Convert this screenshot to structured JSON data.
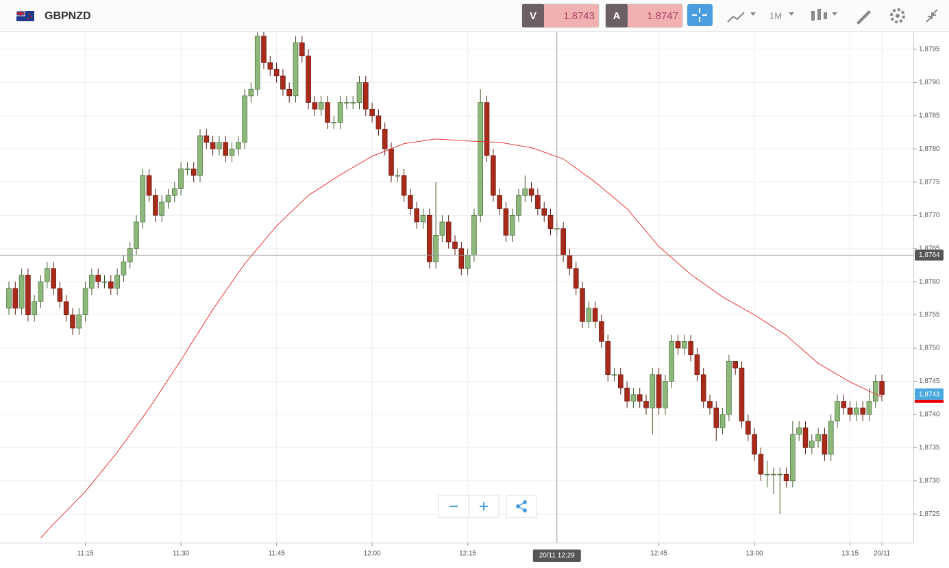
{
  "header": {
    "symbol": "GBPNZD",
    "bid_label": "V",
    "bid": "1.8743",
    "ask_label": "A",
    "ask": "1.8747",
    "timeframe": "1M"
  },
  "chart_data": {
    "type": "candlestick",
    "x": [
      "11:03",
      "11:04",
      "11:05",
      "11:06",
      "11:07",
      "11:08",
      "11:09",
      "11:10",
      "11:11",
      "11:12",
      "11:13",
      "11:14",
      "11:15",
      "11:16",
      "11:17",
      "11:18",
      "11:19",
      "11:20",
      "11:21",
      "11:22",
      "11:23",
      "11:24",
      "11:25",
      "11:26",
      "11:27",
      "11:28",
      "11:29",
      "11:30",
      "11:31",
      "11:32",
      "11:33",
      "11:34",
      "11:35",
      "11:36",
      "11:37",
      "11:38",
      "11:39",
      "11:40",
      "11:41",
      "11:42",
      "11:43",
      "11:44",
      "11:45",
      "11:46",
      "11:47",
      "11:48",
      "11:49",
      "11:50",
      "11:51",
      "11:52",
      "11:53",
      "11:54",
      "11:55",
      "11:56",
      "11:57",
      "11:58",
      "11:59",
      "12:00",
      "12:01",
      "12:02",
      "12:03",
      "12:04",
      "12:05",
      "12:06",
      "12:07",
      "12:08",
      "12:09",
      "12:10",
      "12:11",
      "12:12",
      "12:13",
      "12:14",
      "12:15",
      "12:16",
      "12:17",
      "12:18",
      "12:19",
      "12:20",
      "12:21",
      "12:22",
      "12:23",
      "12:24",
      "12:25",
      "12:26",
      "12:27",
      "12:28",
      "12:29",
      "12:30",
      "12:31",
      "12:32",
      "12:33",
      "12:34",
      "12:35",
      "12:36",
      "12:37",
      "12:38",
      "12:39",
      "12:40",
      "12:41",
      "12:42",
      "12:43",
      "12:44",
      "12:45",
      "12:46",
      "12:47",
      "12:48",
      "12:49",
      "12:50",
      "12:51",
      "12:52",
      "12:53",
      "12:54",
      "12:55",
      "12:56",
      "12:57",
      "12:58",
      "12:59",
      "13:00",
      "13:01",
      "13:02",
      "13:03",
      "13:04",
      "13:05",
      "13:06",
      "13:07",
      "13:08",
      "13:09",
      "13:10",
      "13:11",
      "13:12",
      "13:13",
      "13:14",
      "13:15",
      "13:16",
      "13:17",
      "13:18",
      "13:19",
      "13:20"
    ],
    "open": [
      1.8756,
      1.8759,
      1.8756,
      1.8761,
      1.8755,
      1.8757,
      1.876,
      1.8762,
      1.8759,
      1.8757,
      1.8755,
      1.8753,
      1.8755,
      1.8759,
      1.8761,
      1.876,
      1.876,
      1.8759,
      1.8761,
      1.8763,
      1.8765,
      1.8769,
      1.8776,
      1.8773,
      1.877,
      1.8772,
      1.8773,
      1.8774,
      1.8777,
      1.8777,
      1.8776,
      1.8782,
      1.8781,
      1.878,
      1.8781,
      1.8779,
      1.878,
      1.8781,
      1.8788,
      1.8789,
      1.8797,
      1.8793,
      1.8792,
      1.8791,
      1.8789,
      1.8788,
      1.8796,
      1.8794,
      1.8787,
      1.8786,
      1.8787,
      1.8784,
      1.8784,
      1.8787,
      1.8787,
      1.8787,
      1.879,
      1.8786,
      1.8785,
      1.8783,
      1.878,
      1.8776,
      1.8776,
      1.8773,
      1.8771,
      1.8769,
      1.877,
      1.8763,
      1.8767,
      1.8769,
      1.8766,
      1.8765,
      1.8762,
      1.8764,
      1.877,
      1.8787,
      1.8779,
      1.8773,
      1.8771,
      1.8767,
      1.877,
      1.8773,
      1.8774,
      1.8773,
      1.8771,
      1.877,
      1.8768,
      1.8768,
      1.8764,
      1.8762,
      1.8759,
      1.8754,
      1.8756,
      1.8754,
      1.8751,
      1.8746,
      1.8746,
      1.8744,
      1.8742,
      1.8743,
      1.8742,
      1.8741,
      1.8746,
      1.8741,
      1.8745,
      1.8751,
      1.875,
      1.8751,
      1.8749,
      1.8746,
      1.8742,
      1.8741,
      1.8738,
      1.874,
      1.8748,
      1.8747,
      1.8739,
      1.8737,
      1.8734,
      1.8731,
      1.8731,
      1.8731,
      1.8731,
      1.873,
      1.8737,
      1.8738,
      1.8735,
      1.8736,
      1.8737,
      1.8734,
      1.8739,
      1.8742,
      1.8741,
      1.874,
      1.8741,
      1.874,
      1.8742,
      1.8745
    ],
    "high": [
      1.876,
      1.876,
      1.8762,
      1.8762,
      1.8758,
      1.8761,
      1.8763,
      1.8763,
      1.876,
      1.8758,
      1.8756,
      1.8756,
      1.876,
      1.8762,
      1.8762,
      1.8761,
      1.8761,
      1.8762,
      1.8764,
      1.8766,
      1.877,
      1.8777,
      1.8777,
      1.8774,
      1.8773,
      1.8774,
      1.8775,
      1.8778,
      1.8778,
      1.8778,
      1.8783,
      1.8783,
      1.8782,
      1.8782,
      1.8782,
      1.8781,
      1.8782,
      1.8789,
      1.879,
      1.8798,
      1.8798,
      1.8794,
      1.8793,
      1.8792,
      1.879,
      1.8797,
      1.8797,
      1.8795,
      1.8788,
      1.8788,
      1.8788,
      1.8785,
      1.8788,
      1.8788,
      1.8788,
      1.8791,
      1.8791,
      1.8787,
      1.8786,
      1.8784,
      1.8781,
      1.8777,
      1.8777,
      1.8774,
      1.8772,
      1.8771,
      1.8771,
      1.8775,
      1.877,
      1.877,
      1.8767,
      1.8766,
      1.8765,
      1.8771,
      1.8789,
      1.8788,
      1.878,
      1.8774,
      1.8772,
      1.8771,
      1.8774,
      1.8776,
      1.8775,
      1.8774,
      1.8772,
      1.8771,
      1.8769,
      1.8769,
      1.8765,
      1.8763,
      1.876,
      1.8757,
      1.8757,
      1.8755,
      1.8752,
      1.8747,
      1.8747,
      1.8745,
      1.8744,
      1.8744,
      1.8743,
      1.8747,
      1.8747,
      1.8746,
      1.8752,
      1.8752,
      1.8752,
      1.8752,
      1.875,
      1.8747,
      1.8743,
      1.8742,
      1.8741,
      1.8749,
      1.8748,
      1.8748,
      1.874,
      1.8738,
      1.8735,
      1.8733,
      1.8732,
      1.8732,
      1.8732,
      1.8739,
      1.8739,
      1.8739,
      1.8737,
      1.8738,
      1.8738,
      1.874,
      1.8743,
      1.8743,
      1.8742,
      1.8742,
      1.8742,
      1.8744,
      1.8746,
      1.8746
    ],
    "low": [
      1.8755,
      1.8755,
      1.8755,
      1.8754,
      1.8754,
      1.8756,
      1.8759,
      1.8758,
      1.8756,
      1.8754,
      1.8752,
      1.8752,
      1.8754,
      1.8758,
      1.8759,
      1.8759,
      1.8758,
      1.8758,
      1.876,
      1.8762,
      1.8764,
      1.8768,
      1.8772,
      1.8769,
      1.8769,
      1.8771,
      1.8772,
      1.8773,
      1.8776,
      1.8775,
      1.8775,
      1.878,
      1.8779,
      1.8779,
      1.8778,
      1.8778,
      1.8779,
      1.878,
      1.8787,
      1.8788,
      1.8792,
      1.8791,
      1.879,
      1.8788,
      1.8787,
      1.8787,
      1.8793,
      1.8786,
      1.8785,
      1.8785,
      1.8783,
      1.8783,
      1.8783,
      1.8786,
      1.8786,
      1.8786,
      1.8785,
      1.8784,
      1.8782,
      1.8779,
      1.8775,
      1.8775,
      1.8772,
      1.877,
      1.8768,
      1.8768,
      1.8762,
      1.8762,
      1.8766,
      1.8765,
      1.8764,
      1.8761,
      1.8761,
      1.8763,
      1.8769,
      1.8778,
      1.8772,
      1.877,
      1.8766,
      1.8766,
      1.8769,
      1.8772,
      1.8772,
      1.877,
      1.8769,
      1.8767,
      1.8767,
      1.8763,
      1.8761,
      1.8758,
      1.8753,
      1.8753,
      1.8753,
      1.875,
      1.8745,
      1.8745,
      1.8743,
      1.8741,
      1.8741,
      1.8741,
      1.874,
      1.8737,
      1.874,
      1.874,
      1.8744,
      1.8749,
      1.8749,
      1.8748,
      1.8745,
      1.8741,
      1.874,
      1.8736,
      1.8737,
      1.8739,
      1.8746,
      1.8738,
      1.8736,
      1.8733,
      1.873,
      1.8729,
      1.8728,
      1.8725,
      1.8729,
      1.8729,
      1.8736,
      1.8734,
      1.8734,
      1.8735,
      1.8733,
      1.8733,
      1.8738,
      1.874,
      1.8739,
      1.8739,
      1.8739,
      1.8739,
      1.8741,
      1.8742
    ],
    "close": [
      1.8759,
      1.8756,
      1.8761,
      1.8755,
      1.8757,
      1.876,
      1.8762,
      1.8759,
      1.8757,
      1.8755,
      1.8753,
      1.8755,
      1.8759,
      1.8761,
      1.876,
      1.876,
      1.8759,
      1.8761,
      1.8763,
      1.8765,
      1.8769,
      1.8776,
      1.8773,
      1.877,
      1.8772,
      1.8773,
      1.8774,
      1.8777,
      1.8777,
      1.8776,
      1.8782,
      1.8781,
      1.878,
      1.8781,
      1.8779,
      1.878,
      1.8781,
      1.8788,
      1.8789,
      1.8797,
      1.8793,
      1.8792,
      1.8791,
      1.8789,
      1.8788,
      1.8796,
      1.8794,
      1.8787,
      1.8786,
      1.8787,
      1.8784,
      1.8784,
      1.8787,
      1.8787,
      1.8787,
      1.879,
      1.8786,
      1.8785,
      1.8783,
      1.878,
      1.8776,
      1.8776,
      1.8773,
      1.8771,
      1.8769,
      1.877,
      1.8763,
      1.8767,
      1.8769,
      1.8766,
      1.8765,
      1.8762,
      1.8764,
      1.877,
      1.8787,
      1.8779,
      1.8773,
      1.8771,
      1.8767,
      1.877,
      1.8773,
      1.8774,
      1.8773,
      1.8771,
      1.877,
      1.8768,
      1.8768,
      1.8764,
      1.8762,
      1.8759,
      1.8754,
      1.8756,
      1.8754,
      1.8751,
      1.8746,
      1.8746,
      1.8744,
      1.8742,
      1.8743,
      1.8742,
      1.8741,
      1.8746,
      1.8741,
      1.8745,
      1.8751,
      1.875,
      1.8751,
      1.8749,
      1.8746,
      1.8742,
      1.8741,
      1.8738,
      1.874,
      1.8748,
      1.8747,
      1.8739,
      1.8737,
      1.8734,
      1.8731,
      1.8731,
      1.8731,
      1.8731,
      1.873,
      1.8737,
      1.8738,
      1.8735,
      1.8736,
      1.8737,
      1.8734,
      1.8739,
      1.8742,
      1.8741,
      1.874,
      1.8741,
      1.874,
      1.8742,
      1.8745,
      1.8743
    ],
    "up_color": "#8cb87a",
    "down_color": "#a82a1b",
    "moving_average": {
      "color": "#e53935",
      "x": [
        "11:08",
        "11:10",
        "11:15",
        "11:20",
        "11:25",
        "11:30",
        "11:35",
        "11:40",
        "11:45",
        "11:50",
        "11:55",
        "12:00",
        "12:05",
        "12:10",
        "12:15",
        "12:20",
        "12:25",
        "12:30",
        "12:35",
        "12:40",
        "12:45",
        "12:50",
        "12:55",
        "13:00",
        "13:05",
        "13:10",
        "13:15",
        "13:20"
      ],
      "values": [
        1.87214,
        1.87235,
        1.87284,
        1.87343,
        1.87409,
        1.87482,
        1.87558,
        1.87627,
        1.87684,
        1.8773,
        1.87761,
        1.87789,
        1.87808,
        1.87815,
        1.87812,
        1.8781,
        1.87802,
        1.87785,
        1.8775,
        1.8771,
        1.87653,
        1.87611,
        1.87577,
        1.8755,
        1.87519,
        1.87477,
        1.87449,
        1.87426
      ]
    },
    "ylim": [
      1.8721,
      1.8798
    ],
    "yticks": [
      {
        "value": 1.8725,
        "label": "1,8725"
      },
      {
        "value": 1.873,
        "label": "1,8730"
      },
      {
        "value": 1.8735,
        "label": "1,8735"
      },
      {
        "value": 1.874,
        "label": "1,8740"
      },
      {
        "value": 1.8745,
        "label": "1,8745"
      },
      {
        "value": 1.875,
        "label": "1,8750"
      },
      {
        "value": 1.8755,
        "label": "1,8755"
      },
      {
        "value": 1.876,
        "label": "1,8760"
      },
      {
        "value": 1.8765,
        "label": "1,8765"
      },
      {
        "value": 1.877,
        "label": "1,8770"
      },
      {
        "value": 1.8775,
        "label": "1,8775"
      },
      {
        "value": 1.878,
        "label": "1,8780"
      },
      {
        "value": 1.8785,
        "label": "1,8785"
      },
      {
        "value": 1.879,
        "label": "1,8790"
      },
      {
        "value": 1.8795,
        "label": "1,8795"
      }
    ],
    "xticks": [
      "11:15",
      "11:30",
      "11:45",
      "12:00",
      "12:15",
      "12:45",
      "13:00",
      "13:15",
      {
        "value": "13:20",
        "label": "20/11"
      }
    ],
    "grid": true,
    "last_price": {
      "value": 1.8743,
      "label": "1,8743"
    },
    "crosshair": {
      "x": "12:29",
      "x_label": "20/11 12:29",
      "y": 1.8764,
      "y_label": "1,8764"
    }
  }
}
